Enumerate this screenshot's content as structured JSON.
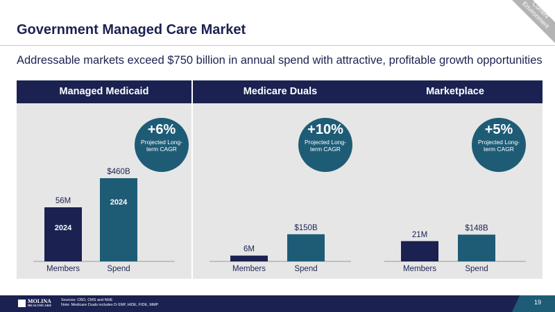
{
  "slide": {
    "title": "Government Managed Care Market",
    "corner_label": "Current Environment",
    "subtitle": "Addressable markets exceed $750 billion in annual spend with attractive, profitable growth opportunities",
    "page_number": "19"
  },
  "footer": {
    "logo_text": "MOLINA",
    "logo_subtext": "HEALTHCARE",
    "sources_line": "Sources: CBO, CMS and NHE",
    "note_line": "Note: Medicare Duals includes D-SNP, HIDE, FIDE, MMP"
  },
  "colors": {
    "navy": "#1b2251",
    "teal": "#1e5c76",
    "panel_bg": "#e6e6e6"
  },
  "panels": [
    {
      "heading": "Managed Medicaid",
      "cagr_value": "+6%",
      "cagr_caption": "Projected Long-term CAGR"
    },
    {
      "heading": "Medicare Duals",
      "cagr_value": "+10%",
      "cagr_caption": "Projected Long-term CAGR"
    },
    {
      "heading": "Marketplace",
      "cagr_value": "+5%",
      "cagr_caption": "Projected Long-term CAGR"
    }
  ],
  "chart_data": [
    {
      "type": "bar",
      "title": "Managed Medicaid",
      "categories": [
        "Members",
        "Spend"
      ],
      "values": [
        56,
        460
      ],
      "units": [
        "M members",
        "$B"
      ],
      "data_labels": [
        "56M",
        "$460B"
      ],
      "bar_inner_labels": [
        "2024",
        "2024"
      ],
      "annotation": "+6% Projected Long-term CAGR"
    },
    {
      "type": "bar",
      "title": "Medicare Duals",
      "categories": [
        "Members",
        "Spend"
      ],
      "values": [
        6,
        150
      ],
      "units": [
        "M members",
        "$B"
      ],
      "data_labels": [
        "6M",
        "$150B"
      ],
      "bar_inner_labels": [
        "",
        ""
      ],
      "annotation": "+10% Projected Long-term CAGR"
    },
    {
      "type": "bar",
      "title": "Marketplace",
      "categories": [
        "Members",
        "Spend"
      ],
      "values": [
        21,
        148
      ],
      "units": [
        "M members",
        "$B"
      ],
      "data_labels": [
        "21M",
        "$148B"
      ],
      "bar_inner_labels": [
        "",
        ""
      ],
      "annotation": "+5% Projected Long-term CAGR"
    }
  ]
}
